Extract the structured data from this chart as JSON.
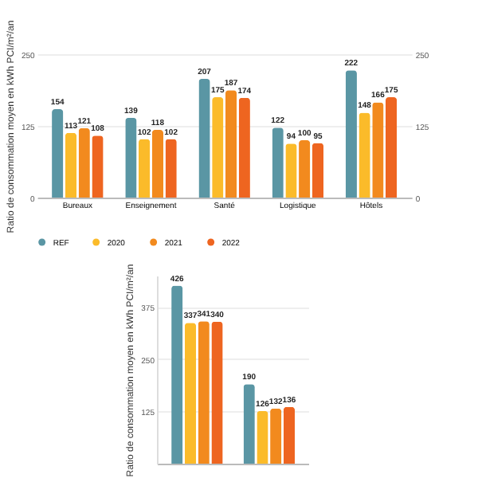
{
  "chart_data": [
    {
      "type": "bar",
      "ylabel": "Ratio de consommation moyen en kWh PCI/m²/an",
      "categories": [
        "Bureaux",
        "Enseignement",
        "Santé",
        "Logistique",
        "Hôtels"
      ],
      "series": [
        {
          "name": "REF",
          "color": "#5a96a4",
          "values": [
            154,
            139,
            207,
            122,
            222
          ]
        },
        {
          "name": "2020",
          "color": "#fbbb2a",
          "values": [
            113,
            102,
            175,
            94,
            148
          ]
        },
        {
          "name": "2021",
          "color": "#f28a1e",
          "values": [
            121,
            118,
            187,
            100,
            166
          ]
        },
        {
          "name": "2022",
          "color": "#ee6520",
          "values": [
            108,
            102,
            174,
            95,
            175
          ]
        }
      ],
      "ylim": [
        0,
        250
      ],
      "yticks": [
        0,
        125,
        250
      ],
      "y2lim": [
        0,
        250
      ],
      "y2ticks": [
        0,
        125,
        250
      ],
      "grid": "y",
      "data_labels": true,
      "legend": "bottom"
    },
    {
      "type": "bar",
      "ylabel": "Ratio de consommation moyen en kWh PCI/m²/an",
      "categories": [
        null,
        null
      ],
      "series": [
        {
          "color": "#5a96a4",
          "values": [
            426,
            190
          ]
        },
        {
          "color": "#fbbb2a",
          "values": [
            337,
            126
          ]
        },
        {
          "color": "#f28a1e",
          "values": [
            341,
            132
          ]
        },
        {
          "color": "#ee6520",
          "values": [
            340,
            136
          ]
        }
      ],
      "ylim": [
        0,
        450
      ],
      "yticks": [
        125,
        250,
        375
      ],
      "grid": "y",
      "data_labels": true
    }
  ]
}
